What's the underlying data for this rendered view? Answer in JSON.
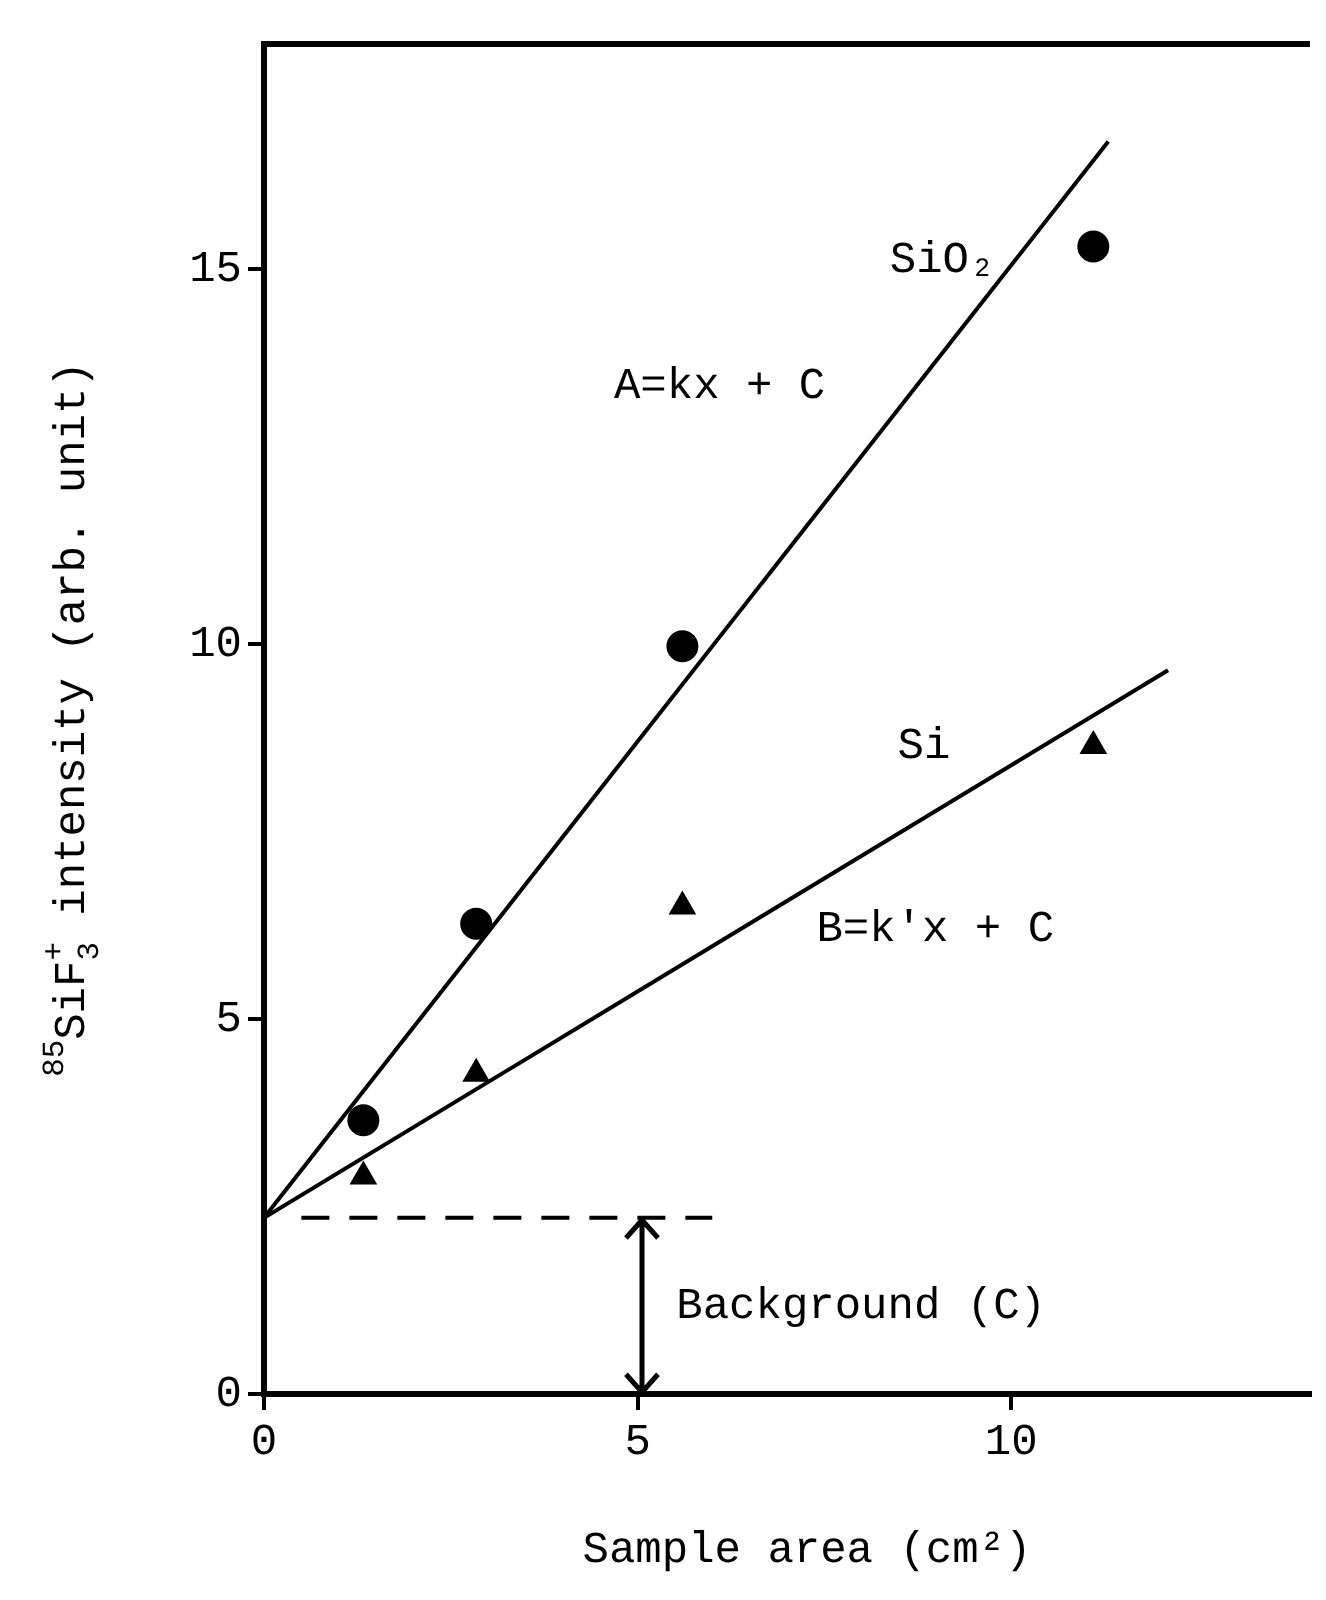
{
  "chart_data": {
    "type": "scatter",
    "xlabel": "Sample area (cm²)",
    "ylabel": "$^{85}$SiF$_{3}$$^{+}$ intensity (arb. unit)",
    "xlim": [
      0,
      14
    ],
    "ylim": [
      0,
      18
    ],
    "xticks": [
      0,
      5,
      10
    ],
    "yticks": [
      0,
      5,
      10,
      15
    ],
    "grid": false,
    "legend": false,
    "series": [
      {
        "type": "scatter",
        "marker": "circle",
        "color": "#000000",
        "x": [
          1.33,
          2.84,
          5.6,
          11.1
        ],
        "values": [
          3.65,
          6.27,
          9.97,
          15.3
        ]
      },
      {
        "type": "scatter",
        "marker": "triangle",
        "color": "#000000",
        "x": [
          1.33,
          2.84,
          5.6,
          11.1
        ],
        "values": [
          2.9,
          4.27,
          6.5,
          8.64
        ]
      },
      {
        "type": "line",
        "name": "SiO₂",
        "marker": "none",
        "line_style": "solid",
        "color": "#000000",
        "x": [
          0,
          11.3
        ],
        "values": [
          2.35,
          16.7
        ]
      },
      {
        "type": "line",
        "name": "Si",
        "marker": "none",
        "line_style": "solid",
        "color": "#000000",
        "x": [
          0,
          12.1
        ],
        "values": [
          2.35,
          9.65
        ]
      },
      {
        "type": "line",
        "marker": "none",
        "line_style": "dashed",
        "color": "#000000",
        "x": [
          0.5,
          6
        ],
        "values": [
          2.35,
          2.35
        ]
      }
    ],
    "annotations": [
      "A=kx + C",
      "B=k'x + C",
      "Background (C)"
    ]
  }
}
